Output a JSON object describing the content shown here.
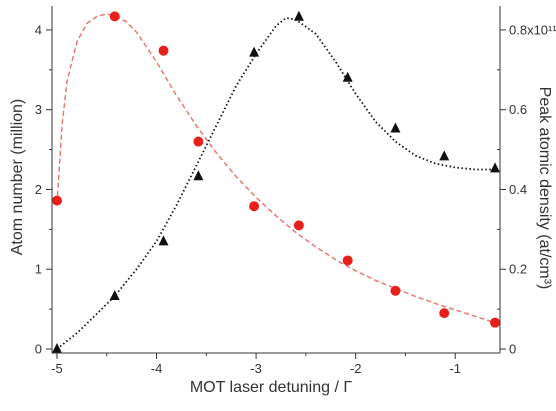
{
  "chart_data": {
    "type": "scatter",
    "title": "",
    "xlabel": "MOT laser detuning / Γ",
    "ylabel_left": "Atom number (million)",
    "ylabel_right": "Peak atomic density (at/cm³)",
    "xlim": [
      -5.05,
      -0.55
    ],
    "ylim_left": [
      -0.05,
      4.3
    ],
    "ylim_right": [
      -0.01,
      0.86
    ],
    "xticks": [
      -5,
      -4,
      -3,
      -2,
      -1
    ],
    "xtick_labels": [
      "-5",
      "-4",
      "-3",
      "-2",
      "-1"
    ],
    "yticks_left": [
      0,
      1,
      2,
      3,
      4
    ],
    "ytick_labels_left": [
      "0",
      "1",
      "2",
      "3",
      "4"
    ],
    "yticks_right": [
      0,
      0.2,
      0.4,
      0.6,
      0.8
    ],
    "ytick_labels_right": [
      "0",
      "0.2",
      "0.4",
      "0.6",
      "0.8x10¹¹"
    ],
    "grid": false,
    "series": [
      {
        "axis": "left",
        "marker": "circle",
        "color": "#e8201c",
        "x": [
          -5.0,
          -4.42,
          -3.93,
          -3.58,
          -3.02,
          -2.57,
          -2.08,
          -1.6,
          -1.11,
          -0.6
        ],
        "y": [
          1.86,
          4.17,
          3.74,
          2.6,
          1.79,
          1.55,
          1.11,
          0.73,
          0.45,
          0.33
        ]
      },
      {
        "axis": "right",
        "marker": "triangle",
        "color": "#111111",
        "x": [
          -5.0,
          -4.42,
          -3.93,
          -3.58,
          -3.02,
          -2.57,
          -2.08,
          -1.6,
          -1.11,
          -0.6
        ],
        "y": [
          0.0,
          0.133,
          0.27,
          0.433,
          0.743,
          0.833,
          0.68,
          0.553,
          0.483,
          0.453
        ]
      }
    ],
    "fits": [
      {
        "axis": "left",
        "style": "dashed",
        "color": "#e8706a",
        "x": [
          -5.0,
          -4.95,
          -4.9,
          -4.8,
          -4.7,
          -4.6,
          -4.5,
          -4.42,
          -4.3,
          -4.2,
          -4.0,
          -3.8,
          -3.6,
          -3.4,
          -3.2,
          -3.0,
          -2.8,
          -2.6,
          -2.4,
          -2.2,
          -2.0,
          -1.8,
          -1.6,
          -1.4,
          -1.2,
          -1.0,
          -0.8,
          -0.6
        ],
        "y": [
          1.82,
          2.8,
          3.35,
          3.85,
          4.08,
          4.17,
          4.2,
          4.18,
          4.1,
          3.97,
          3.6,
          3.18,
          2.8,
          2.46,
          2.16,
          1.9,
          1.67,
          1.46,
          1.28,
          1.12,
          0.98,
          0.86,
          0.76,
          0.66,
          0.57,
          0.49,
          0.41,
          0.33
        ]
      },
      {
        "axis": "right",
        "style": "dotted",
        "color": "#111111",
        "x": [
          -5.0,
          -4.8,
          -4.6,
          -4.42,
          -4.2,
          -4.0,
          -3.8,
          -3.6,
          -3.4,
          -3.2,
          -3.0,
          -2.8,
          -2.7,
          -2.6,
          -2.4,
          -2.2,
          -2.0,
          -1.8,
          -1.6,
          -1.4,
          -1.2,
          -1.0,
          -0.8,
          -0.6
        ],
        "y": [
          0.0,
          0.04,
          0.088,
          0.133,
          0.2,
          0.27,
          0.36,
          0.46,
          0.56,
          0.66,
          0.74,
          0.81,
          0.83,
          0.826,
          0.79,
          0.72,
          0.64,
          0.57,
          0.52,
          0.485,
          0.465,
          0.455,
          0.45,
          0.45
        ]
      }
    ]
  }
}
